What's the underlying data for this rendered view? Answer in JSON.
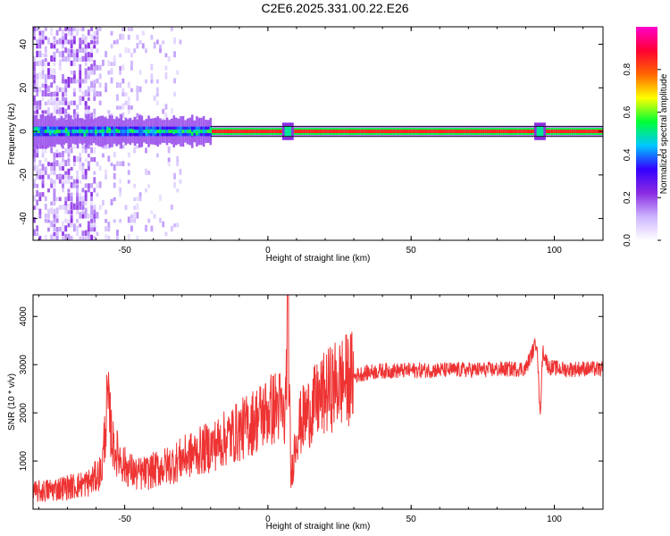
{
  "title": "C2E6.2025.331.00.22.E26",
  "chart_data": [
    {
      "type": "heatmap",
      "xlabel": "Height of straight line (km)",
      "ylabel": "Frequency (Hz)",
      "xlim": [
        -82,
        117
      ],
      "ylim": [
        -50,
        48
      ],
      "xticks": [
        -50,
        0,
        50,
        100
      ],
      "yticks": [
        -40,
        -20,
        0,
        20,
        40
      ],
      "colorbar": {
        "label": "Normalized spectral amplitude",
        "range": [
          0,
          1
        ],
        "ticks": [
          "0.0",
          "0.2",
          "0.4",
          "0.6",
          "0.8"
        ],
        "colors": [
          "#ffffff",
          "#cdb4ff",
          "#8a2be2",
          "#3300ff",
          "#00c8ff",
          "#00ff33",
          "#ffff00",
          "#ff6600",
          "#ff0033",
          "#ff00cc"
        ]
      },
      "ridge_frequency_hz": 0,
      "strong_ridge_from_km": -20,
      "bright_spots_km": [
        7,
        95
      ]
    },
    {
      "type": "line",
      "xlabel": "Height of straight line (km)",
      "ylabel": "SNR (10 * v/v)",
      "xlim": [
        -82,
        117
      ],
      "ylim": [
        0,
        4450
      ],
      "xticks": [
        -50,
        0,
        50,
        100
      ],
      "yticks": [
        1000,
        2000,
        3000,
        4000
      ],
      "color": "#ee3333",
      "x": [
        -82,
        -78,
        -74,
        -70,
        -66,
        -62,
        -58,
        -56,
        -54,
        -50,
        -46,
        -42,
        -38,
        -34,
        -30,
        -26,
        -22,
        -18,
        -14,
        -10,
        -6,
        -2,
        2,
        4,
        6,
        7,
        8,
        10,
        12,
        16,
        20,
        24,
        28,
        32,
        36,
        40,
        50,
        60,
        70,
        80,
        90,
        94,
        95,
        96,
        98,
        104,
        110,
        117
      ],
      "y": [
        350,
        380,
        420,
        460,
        500,
        560,
        800,
        2250,
        1300,
        900,
        720,
        760,
        850,
        920,
        1050,
        1150,
        1250,
        1350,
        1500,
        1620,
        1780,
        1960,
        2100,
        2150,
        1800,
        4300,
        600,
        1600,
        1850,
        2150,
        2400,
        2600,
        2700,
        2800,
        2850,
        2870,
        2880,
        2890,
        2890,
        2900,
        2920,
        3500,
        1900,
        3300,
        2950,
        2900,
        2920,
        2900
      ]
    }
  ]
}
